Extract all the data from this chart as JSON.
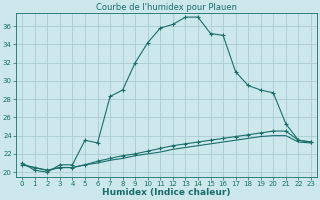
{
  "title": "Courbe de l'humidex pour Plauen",
  "xlabel": "Humidex (Indice chaleur)",
  "background_color": "#cce8ec",
  "grid_color": "#aaccd4",
  "line_color": "#1a6e6a",
  "xlim": [
    -0.5,
    23.5
  ],
  "ylim": [
    19.5,
    37.5
  ],
  "yticks": [
    20,
    22,
    24,
    26,
    28,
    30,
    32,
    34,
    36
  ],
  "xticks": [
    0,
    1,
    2,
    3,
    4,
    5,
    6,
    7,
    8,
    9,
    10,
    11,
    12,
    13,
    14,
    15,
    16,
    17,
    18,
    19,
    20,
    21,
    22,
    23
  ],
  "series1_x": [
    0,
    1,
    2,
    3,
    4,
    5,
    6,
    7,
    8,
    9,
    10,
    11,
    12,
    13,
    14,
    15,
    16,
    17,
    18,
    19,
    20,
    21,
    22,
    23
  ],
  "series1_y": [
    21.0,
    20.2,
    20.0,
    20.8,
    20.8,
    23.5,
    23.2,
    28.3,
    29.0,
    32.0,
    34.2,
    35.8,
    36.2,
    37.0,
    37.0,
    35.2,
    35.0,
    31.0,
    29.5,
    29.0,
    28.7,
    25.3,
    23.5,
    23.3
  ],
  "series2_x": [
    0,
    1,
    2,
    3,
    4,
    5,
    6,
    7,
    8,
    9,
    10,
    11,
    12,
    13,
    14,
    15,
    16,
    17,
    18,
    19,
    20,
    21,
    22,
    23
  ],
  "series2_y": [
    20.8,
    20.5,
    20.2,
    20.5,
    20.5,
    20.8,
    21.2,
    21.5,
    21.8,
    22.0,
    22.3,
    22.6,
    22.9,
    23.1,
    23.3,
    23.5,
    23.7,
    23.9,
    24.1,
    24.3,
    24.5,
    24.5,
    23.5,
    23.3
  ],
  "series3_x": [
    0,
    1,
    2,
    3,
    4,
    5,
    6,
    7,
    8,
    9,
    10,
    11,
    12,
    13,
    14,
    15,
    16,
    17,
    18,
    19,
    20,
    21,
    22,
    23
  ],
  "series3_y": [
    20.8,
    20.5,
    20.2,
    20.5,
    20.5,
    20.8,
    21.0,
    21.3,
    21.5,
    21.8,
    22.0,
    22.2,
    22.5,
    22.7,
    22.9,
    23.1,
    23.3,
    23.5,
    23.7,
    23.9,
    24.0,
    24.0,
    23.3,
    23.2
  ],
  "title_fontsize": 6,
  "xlabel_fontsize": 6.5,
  "tick_fontsize": 5
}
